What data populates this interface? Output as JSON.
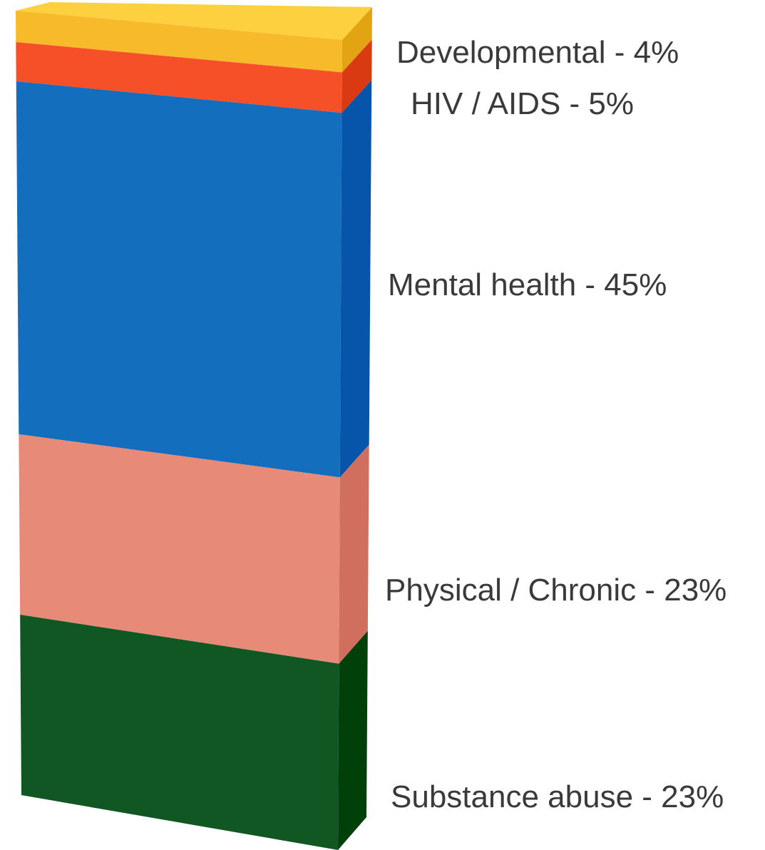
{
  "chart_data": {
    "type": "bar",
    "title": "",
    "stacked": true,
    "three_d": true,
    "orientation": "vertical",
    "categories": [
      ""
    ],
    "series": [
      {
        "name": "Developmental",
        "values": [
          4
        ],
        "label": "Developmental - 4%",
        "color": "#F6BA2A",
        "side_color": "#E2A413",
        "top_color": "#FCD03F"
      },
      {
        "name": "HIV / AIDS",
        "values": [
          5
        ],
        "label": "HIV / AIDS - 5%",
        "color": "#F55028",
        "side_color": "#DA3A12"
      },
      {
        "name": "Mental health",
        "values": [
          45
        ],
        "label": "Mental health - 45%",
        "color": "#136EBE",
        "side_color": "#0655AA"
      },
      {
        "name": "Physical / Chronic",
        "values": [
          23
        ],
        "label": "Physical / Chronic - 23%",
        "color": "#E78A77",
        "side_color": "#D06F5D"
      },
      {
        "name": "Substance abuse",
        "values": [
          23
        ],
        "label": "Substance abuse - 23%",
        "color": "#105723",
        "side_color": "#02400A"
      }
    ],
    "unit": "%",
    "legend": "none",
    "grid": false,
    "axes": false
  }
}
